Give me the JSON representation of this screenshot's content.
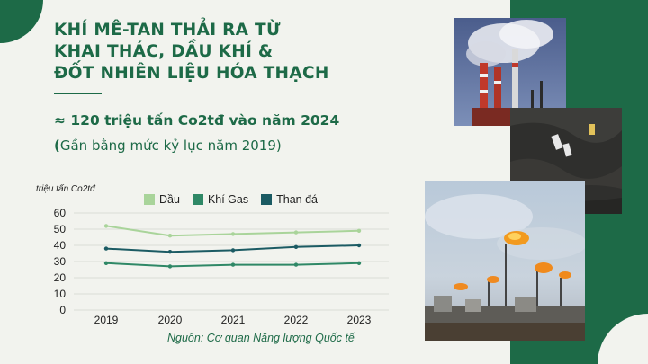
{
  "title_lines": [
    "KHÍ MÊ-TAN THẢI RA TỪ",
    "KHAI THÁC, DẦU KHÍ &",
    "ĐỐT NHIÊN LIỆU HÓA THẠCH"
  ],
  "headline": "≈ 120 triệu tấn Co2tđ vào năm 2024",
  "subline_open": "(",
  "subline_text": "Gần bằng mức kỷ lục năm 2019)",
  "source": "Nguồn: Cơ quan Năng lượng Quốc tế",
  "colors": {
    "dark_green": "#1d6a47",
    "oil": "#a9d49a",
    "gas": "#2f8866",
    "coal": "#1b5b63"
  },
  "chart_data": {
    "type": "line",
    "ylabel": "triệu tấn Co2tđ",
    "categories": [
      "2019",
      "2020",
      "2021",
      "2022",
      "2023"
    ],
    "ylim": [
      0,
      60
    ],
    "yticks": [
      "0",
      "10",
      "20",
      "30",
      "40",
      "50",
      "60"
    ],
    "grid": true,
    "legend_position": "top",
    "series": [
      {
        "name": "Dầu",
        "values": [
          52,
          46,
          47,
          48,
          49
        ],
        "color": "#a9d49a"
      },
      {
        "name": "Khí Gas",
        "values": [
          29,
          27,
          28,
          28,
          29
        ],
        "color": "#2f8866"
      },
      {
        "name": "Than đá",
        "values": [
          38,
          36,
          37,
          39,
          40
        ],
        "color": "#1b5b63"
      }
    ]
  }
}
